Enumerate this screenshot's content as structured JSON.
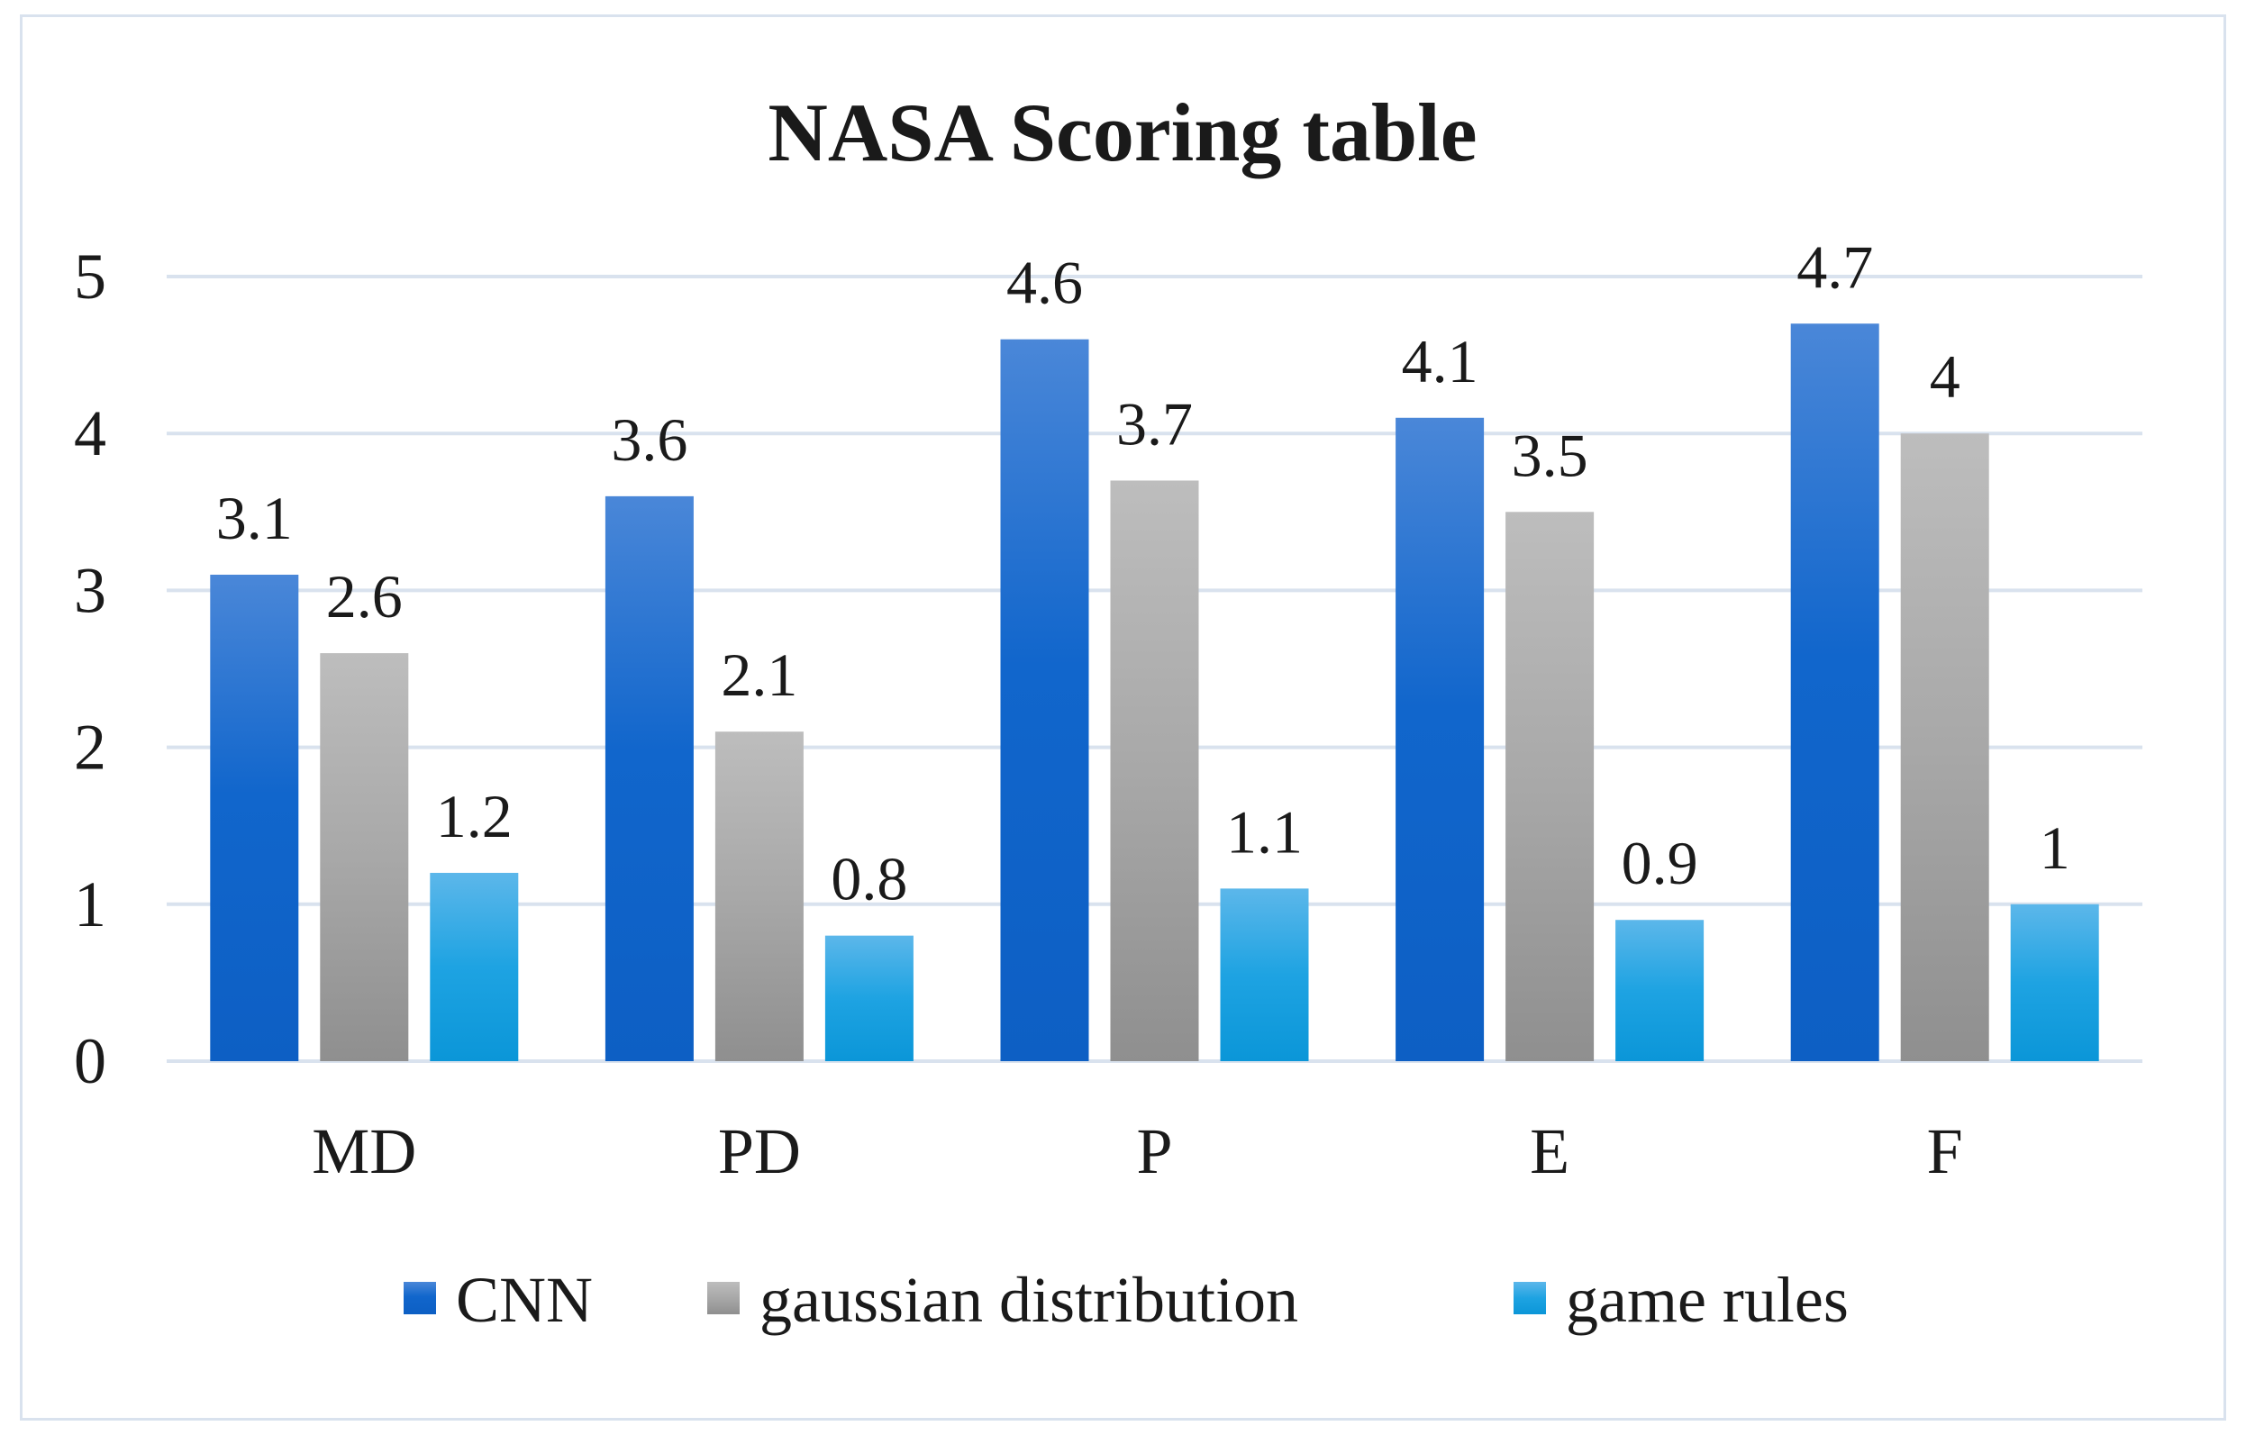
{
  "chart_data": {
    "type": "bar",
    "title": "NASA Scoring table",
    "xlabel": "",
    "ylabel": "",
    "categories": [
      "MD",
      "PD",
      "P",
      "E",
      "F"
    ],
    "series": [
      {
        "name": "CNN",
        "values": [
          3.1,
          3.6,
          4.6,
          4.1,
          4.7
        ],
        "color": "#1f6fd1"
      },
      {
        "name": "gaussian distribution",
        "values": [
          2.6,
          2.1,
          3.7,
          3.5,
          4
        ],
        "color": "#a6a6a6"
      },
      {
        "name": "game rules",
        "values": [
          1.2,
          0.8,
          1.1,
          0.9,
          1
        ],
        "color": "#36a6e0"
      }
    ],
    "ylim": [
      0,
      5
    ],
    "yticks": [
      0,
      1,
      2,
      3,
      4,
      5
    ],
    "grid": true,
    "legend_position": "bottom",
    "data_labels": true
  }
}
